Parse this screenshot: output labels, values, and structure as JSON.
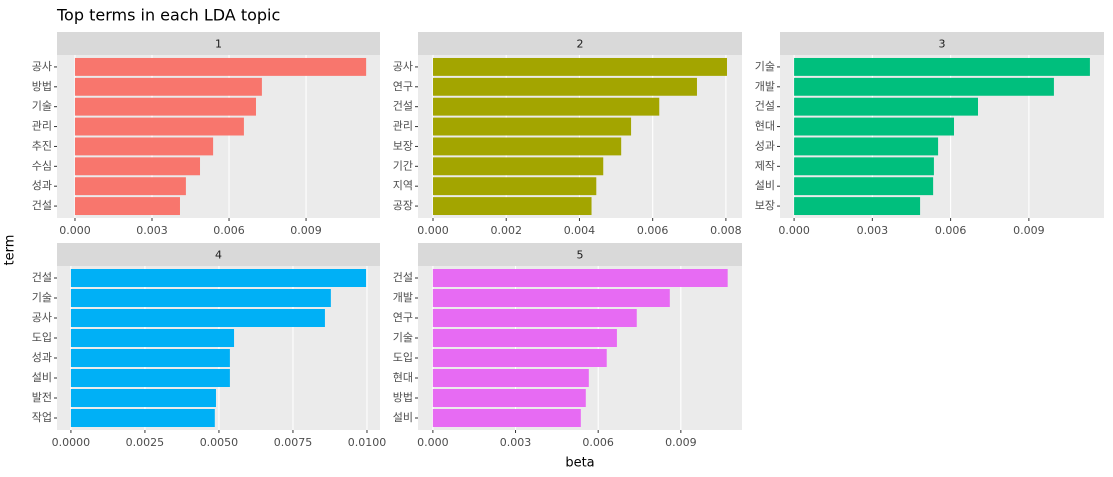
{
  "chart_data": {
    "type": "faceted-bar",
    "title": "Top terms in each LDA topic",
    "x_label": "beta",
    "y_label": "term",
    "panels": [
      {
        "name": "1",
        "color": "#F8766D",
        "categories": [
          "공사",
          "방법",
          "기술",
          "관리",
          "추진",
          "수심",
          "성과",
          "건설"
        ],
        "values": [
          0.01134,
          0.00728,
          0.00705,
          0.00658,
          0.00538,
          0.00487,
          0.00432,
          0.00409
        ],
        "xlim": [
          -0.0007,
          0.01188
        ],
        "xticks": [
          {
            "value": 0,
            "label": "0.000"
          },
          0.003,
          0.006,
          0.009
        ]
      },
      {
        "name": "2",
        "color": "#A3A500",
        "categories": [
          "공사",
          "연구",
          "건설",
          "관리",
          "보장",
          "기간",
          "지역",
          "공장"
        ],
        "values": [
          0.00803,
          0.00721,
          0.00618,
          0.00541,
          0.00514,
          0.00465,
          0.00446,
          0.00433
        ],
        "xlim": [
          -0.00041,
          0.00844
        ],
        "xticks": [
          {
            "value": 0,
            "label": "0.000"
          },
          0.002,
          0.004,
          0.006,
          0.008
        ]
      },
      {
        "name": "3",
        "color": "#00BF7D",
        "categories": [
          "기술",
          "개발",
          "건설",
          "현대",
          "성과",
          "제작",
          "설비",
          "보장"
        ],
        "values": [
          0.01134,
          0.00996,
          0.00705,
          0.00613,
          0.00552,
          0.00536,
          0.00533,
          0.00483
        ],
        "xlim": [
          -0.00054,
          0.01188
        ],
        "xticks": [
          {
            "value": 0,
            "label": "0.000"
          },
          0.003,
          0.006,
          0.009
        ]
      },
      {
        "name": "4",
        "color": "#00B0F6",
        "categories": [
          "건설",
          "기술",
          "공사",
          "도입",
          "성과",
          "설비",
          "발전",
          "작업"
        ],
        "values": [
          0.00997,
          0.00878,
          0.00858,
          0.00551,
          0.00537,
          0.00537,
          0.0049,
          0.00486
        ],
        "xlim": [
          -0.00047,
          0.01044
        ],
        "xticks": [
          {
            "value": 0,
            "label": "0.0000"
          },
          0.0025,
          {
            "value": 0.005,
            "label": "0.0050"
          },
          0.0075,
          {
            "value": 0.01,
            "label": "0.0100"
          }
        ]
      },
      {
        "name": "5",
        "color": "#E76BF3",
        "categories": [
          "건설",
          "개발",
          "연구",
          "기술",
          "도입",
          "현대",
          "방법",
          "설비"
        ],
        "values": [
          0.0107,
          0.0086,
          0.0074,
          0.00668,
          0.00631,
          0.00566,
          0.00555,
          0.00537
        ],
        "xlim": [
          -0.00054,
          0.01122
        ],
        "xticks": [
          {
            "value": 0,
            "label": "0.000"
          },
          0.003,
          0.006,
          0.009
        ]
      }
    ]
  }
}
